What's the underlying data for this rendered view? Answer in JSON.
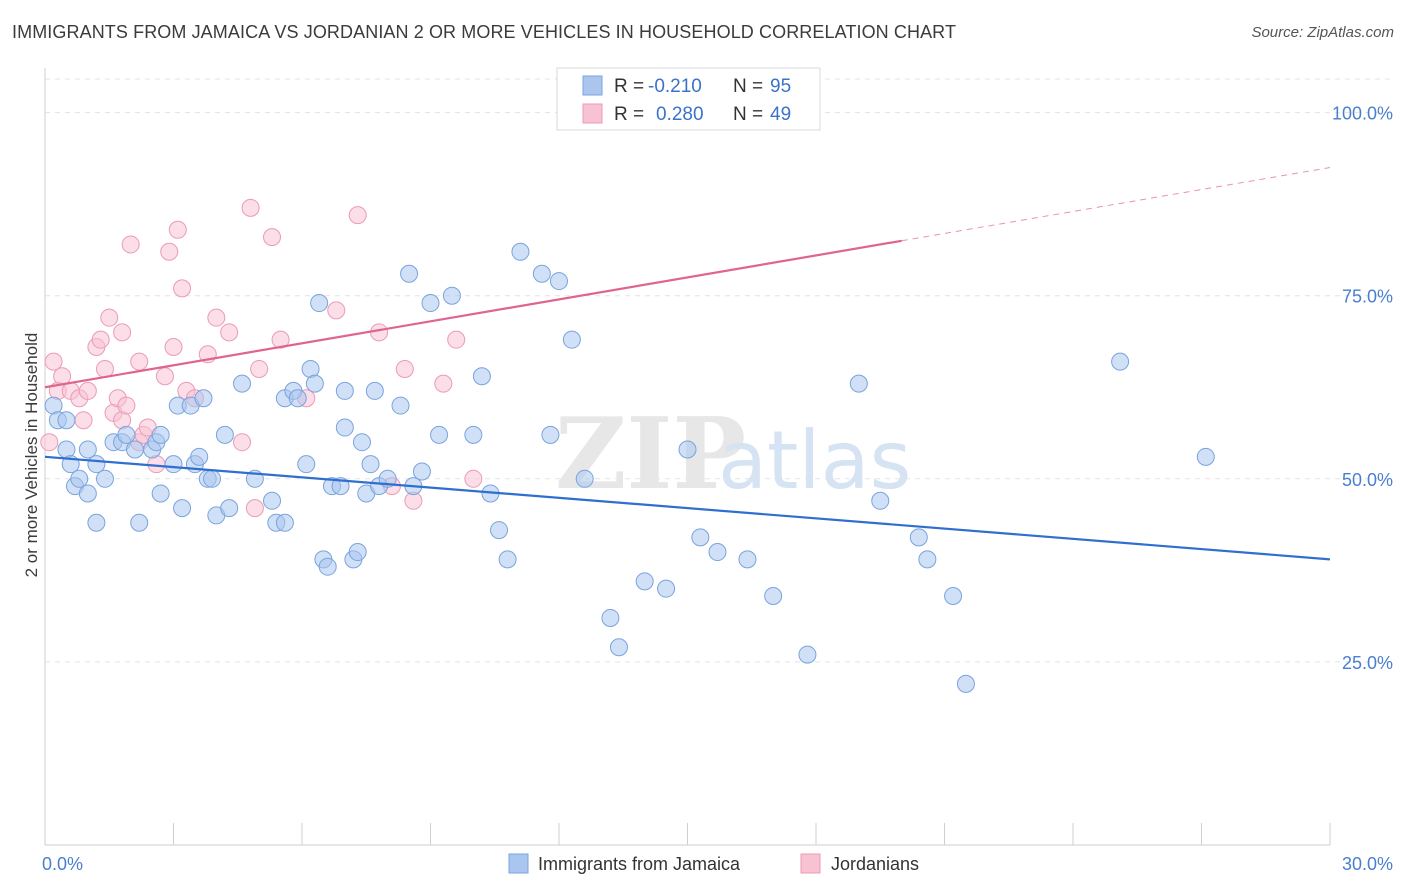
{
  "title": "IMMIGRANTS FROM JAMAICA VS JORDANIAN 2 OR MORE VEHICLES IN HOUSEHOLD CORRELATION CHART",
  "source": "Source: ZipAtlas.com",
  "watermark": {
    "zip": "ZIP",
    "atlas": "atlas"
  },
  "chart_data": {
    "type": "scatter",
    "xlabel": "",
    "ylabel": "2 or more Vehicles in Household",
    "xlim": [
      0,
      30
    ],
    "ylim": [
      0,
      105
    ],
    "x_tick_labels": [
      "0.0%",
      "30.0%"
    ],
    "y_ticks": [
      25,
      50,
      75,
      100
    ],
    "y_tick_labels": [
      "25.0%",
      "50.0%",
      "75.0%",
      "100.0%"
    ],
    "grid": "horizontal dashed",
    "legend_placement": "top-center",
    "colors": {
      "jamaica_fill": "#aac6ee",
      "jamaica_stroke": "#7aa3dd",
      "jamaica_line": "#2f6fcf",
      "jordan_fill": "#f7c3d3",
      "jordan_stroke": "#ec9ab6",
      "jordan_line": "#e0648f"
    },
    "stats": [
      {
        "r_label": "R =",
        "r_value": "-0.210",
        "n_label": "N =",
        "n_value": "95"
      },
      {
        "r_label": "R =",
        "r_value": "0.280",
        "n_label": "N =",
        "n_value": "49"
      }
    ],
    "series": [
      {
        "name": "Immigrants from Jamaica",
        "trend": {
          "x": [
            0,
            30
          ],
          "y": [
            53.0,
            39.0
          ],
          "style": "solid"
        },
        "points": [
          [
            0.2,
            60
          ],
          [
            0.3,
            58
          ],
          [
            0.5,
            54
          ],
          [
            0.5,
            58
          ],
          [
            0.6,
            52
          ],
          [
            0.7,
            49
          ],
          [
            0.8,
            50
          ],
          [
            1.0,
            54
          ],
          [
            1.0,
            48
          ],
          [
            1.2,
            52
          ],
          [
            1.2,
            44
          ],
          [
            1.4,
            50
          ],
          [
            1.6,
            55
          ],
          [
            1.8,
            55
          ],
          [
            1.9,
            56
          ],
          [
            2.1,
            54
          ],
          [
            2.2,
            44
          ],
          [
            2.5,
            54
          ],
          [
            2.6,
            55
          ],
          [
            2.7,
            56
          ],
          [
            2.7,
            48
          ],
          [
            3.0,
            52
          ],
          [
            3.1,
            60
          ],
          [
            3.2,
            46
          ],
          [
            3.4,
            60
          ],
          [
            3.5,
            52
          ],
          [
            3.6,
            53
          ],
          [
            3.7,
            61
          ],
          [
            3.8,
            50
          ],
          [
            3.9,
            50
          ],
          [
            4.0,
            45
          ],
          [
            4.2,
            56
          ],
          [
            4.3,
            46
          ],
          [
            4.6,
            63
          ],
          [
            4.9,
            50
          ],
          [
            5.3,
            47
          ],
          [
            5.4,
            44
          ],
          [
            5.6,
            44
          ],
          [
            5.6,
            61
          ],
          [
            5.8,
            62
          ],
          [
            5.9,
            61
          ],
          [
            6.1,
            52
          ],
          [
            6.2,
            65
          ],
          [
            6.3,
            63
          ],
          [
            6.4,
            74
          ],
          [
            6.5,
            39
          ],
          [
            6.6,
            38
          ],
          [
            6.7,
            49
          ],
          [
            6.9,
            49
          ],
          [
            7.0,
            57
          ],
          [
            7.0,
            62
          ],
          [
            7.2,
            39
          ],
          [
            7.3,
            40
          ],
          [
            7.4,
            55
          ],
          [
            7.5,
            48
          ],
          [
            7.6,
            52
          ],
          [
            7.7,
            62
          ],
          [
            7.8,
            49
          ],
          [
            8.0,
            50
          ],
          [
            8.3,
            60
          ],
          [
            8.5,
            78
          ],
          [
            8.6,
            49
          ],
          [
            8.8,
            51
          ],
          [
            9.0,
            74
          ],
          [
            9.2,
            56
          ],
          [
            9.5,
            75
          ],
          [
            10.0,
            56
          ],
          [
            10.2,
            64
          ],
          [
            10.4,
            48
          ],
          [
            10.6,
            43
          ],
          [
            10.8,
            39
          ],
          [
            11.1,
            81
          ],
          [
            11.6,
            78
          ],
          [
            11.8,
            56
          ],
          [
            12.0,
            77
          ],
          [
            12.3,
            69
          ],
          [
            12.6,
            50
          ],
          [
            13.2,
            31
          ],
          [
            13.4,
            27
          ],
          [
            14.0,
            36
          ],
          [
            14.5,
            35
          ],
          [
            15.0,
            54
          ],
          [
            15.3,
            42
          ],
          [
            15.7,
            40
          ],
          [
            16.4,
            39
          ],
          [
            17.0,
            34
          ],
          [
            17.8,
            26
          ],
          [
            19.0,
            63
          ],
          [
            19.5,
            47
          ],
          [
            20.4,
            42
          ],
          [
            20.6,
            39
          ],
          [
            21.2,
            34
          ],
          [
            21.5,
            22
          ],
          [
            25.1,
            66
          ],
          [
            27.1,
            53
          ]
        ]
      },
      {
        "name": "Jordanians",
        "trend": {
          "x": [
            0,
            20
          ],
          "y": [
            62.5,
            82.5
          ],
          "style": "solid",
          "extend_to": 30,
          "extend_style": "dashed"
        },
        "points": [
          [
            0.1,
            55
          ],
          [
            0.2,
            66
          ],
          [
            0.3,
            62
          ],
          [
            0.4,
            64
          ],
          [
            0.6,
            62
          ],
          [
            0.8,
            61
          ],
          [
            0.9,
            58
          ],
          [
            1.0,
            62
          ],
          [
            1.2,
            68
          ],
          [
            1.3,
            69
          ],
          [
            1.4,
            65
          ],
          [
            1.5,
            72
          ],
          [
            1.6,
            59
          ],
          [
            1.7,
            61
          ],
          [
            1.8,
            58
          ],
          [
            1.8,
            70
          ],
          [
            1.9,
            60
          ],
          [
            2.0,
            82
          ],
          [
            2.2,
            55
          ],
          [
            2.2,
            66
          ],
          [
            2.3,
            56
          ],
          [
            2.4,
            57
          ],
          [
            2.6,
            52
          ],
          [
            2.8,
            64
          ],
          [
            2.9,
            81
          ],
          [
            3.0,
            68
          ],
          [
            3.1,
            84
          ],
          [
            3.2,
            76
          ],
          [
            3.3,
            62
          ],
          [
            3.5,
            61
          ],
          [
            3.8,
            67
          ],
          [
            4.0,
            72
          ],
          [
            4.3,
            70
          ],
          [
            4.6,
            55
          ],
          [
            4.8,
            87
          ],
          [
            4.9,
            46
          ],
          [
            5.0,
            65
          ],
          [
            5.3,
            83
          ],
          [
            5.5,
            69
          ],
          [
            6.1,
            61
          ],
          [
            6.8,
            73
          ],
          [
            7.3,
            86
          ],
          [
            7.8,
            70
          ],
          [
            8.1,
            49
          ],
          [
            8.4,
            65
          ],
          [
            8.6,
            47
          ],
          [
            9.3,
            63
          ],
          [
            9.6,
            69
          ],
          [
            10.0,
            50
          ]
        ]
      }
    ]
  }
}
